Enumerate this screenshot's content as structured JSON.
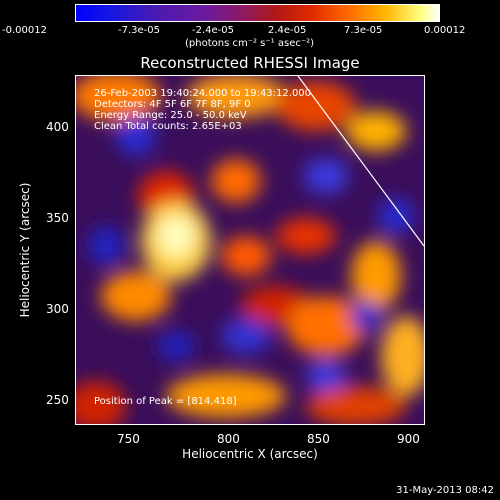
{
  "colorbar": {
    "ticks": [
      "-0.00012",
      "-7.3e-05",
      "-2.4e-05",
      "2.4e-05",
      "7.3e-05",
      "0.00012"
    ],
    "units": "(photons cm⁻² s⁻¹ asec⁻²)"
  },
  "title": "Reconstructed RHESSI Image",
  "info": {
    "time": "26-Feb-2003 19:40:24.000 to 19:43:12.000",
    "detectors": "Detectors: 4F 5F 6F 7F 8F, 9F 0",
    "energy": "Energy Range: 25.0 - 50.0 keV",
    "clean": "Clean     Total counts: 2.65E+03",
    "peak": "Position of Peak = [814,418]"
  },
  "axes": {
    "xlabel": "Heliocentric X (arcsec)",
    "ylabel": "Heliocentric Y (arcsec)",
    "xticks": [
      "750",
      "800",
      "850",
      "900"
    ],
    "yticks": [
      "400",
      "350",
      "300",
      "250"
    ]
  },
  "timestamp": "31-May-2013 08:42"
}
